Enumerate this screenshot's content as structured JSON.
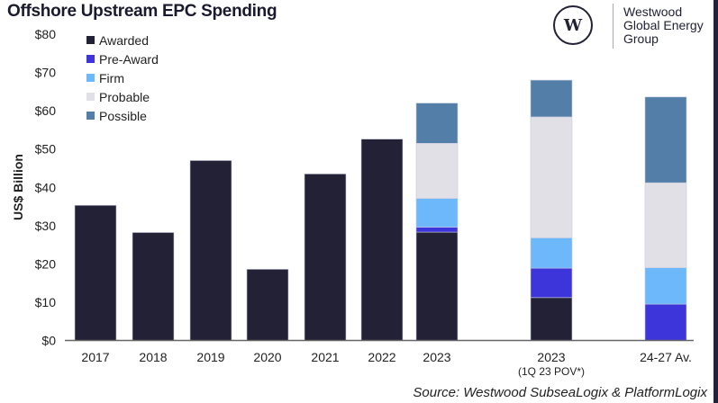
{
  "chart_data": {
    "type": "bar",
    "stacked": true,
    "title": "Offshore Upstream EPC Spending",
    "ylabel": "US$ Billion",
    "xlabel": "",
    "ylim": [
      0,
      80
    ],
    "yticks": [
      "$0",
      "$10",
      "$20",
      "$30",
      "$40",
      "$50",
      "$60",
      "$70",
      "$80"
    ],
    "grid": false,
    "legend_position": "top-left",
    "categories": [
      "2017",
      "2018",
      "2019",
      "2020",
      "2021",
      "2022",
      "2023",
      "2023",
      "24-27 Av."
    ],
    "category_sublabels": [
      "",
      "",
      "",
      "",
      "",
      "",
      "",
      "(1Q 23 POV*)",
      ""
    ],
    "series": [
      {
        "name": "Awarded",
        "color": "#232136",
        "values": [
          35.3,
          28.2,
          47.0,
          18.6,
          43.5,
          52.6,
          28.3,
          11.2,
          0
        ]
      },
      {
        "name": "Pre-Award",
        "color": "#3d35d9",
        "values": [
          0,
          0,
          0,
          0,
          0,
          0,
          1.3,
          7.7,
          9.5
        ]
      },
      {
        "name": "Firm",
        "color": "#6db8fb",
        "values": [
          0,
          0,
          0,
          0,
          0,
          0,
          7.5,
          7.9,
          9.5
        ]
      },
      {
        "name": "Probable",
        "color": "#e1e0e6",
        "values": [
          0,
          0,
          0,
          0,
          0,
          0,
          14.4,
          31.6,
          22.2
        ]
      },
      {
        "name": "Possible",
        "color": "#527ea8",
        "values": [
          0,
          0,
          0,
          0,
          0,
          0,
          10.5,
          9.6,
          22.4
        ]
      }
    ]
  },
  "logo": {
    "line1": "Westwood",
    "line2": "Global Energy",
    "line3": "Group",
    "mark": "W"
  },
  "source": "Source: Westwood SubseaLogix & PlatformLogix"
}
